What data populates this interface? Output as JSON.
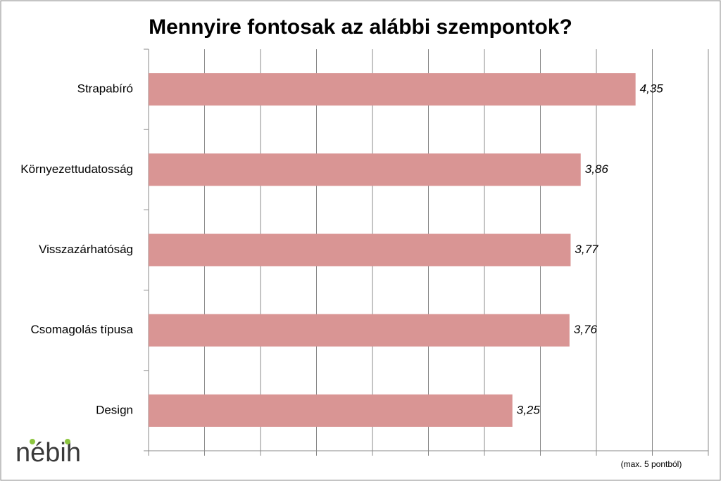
{
  "chart_data": {
    "type": "bar",
    "orientation": "horizontal",
    "title": "Mennyire fontosak az alábbi szempontok?",
    "categories": [
      "Strapabíró",
      "Környezettudatosság",
      "Visszazárhatóság",
      "Csomagolás típusa",
      "Design"
    ],
    "values": [
      4.35,
      3.86,
      3.77,
      3.76,
      3.25
    ],
    "value_labels": [
      "4,35",
      "3,86",
      "3,77",
      "3,76",
      "3,25"
    ],
    "color": "#d99594",
    "xlim": [
      0,
      5
    ],
    "xticks": [
      0,
      0.5,
      1,
      1.5,
      2,
      2.5,
      3,
      3.5,
      4,
      4.5,
      5
    ],
    "grid": true,
    "note": "(max. 5 pontból)",
    "logo": "nébih"
  }
}
